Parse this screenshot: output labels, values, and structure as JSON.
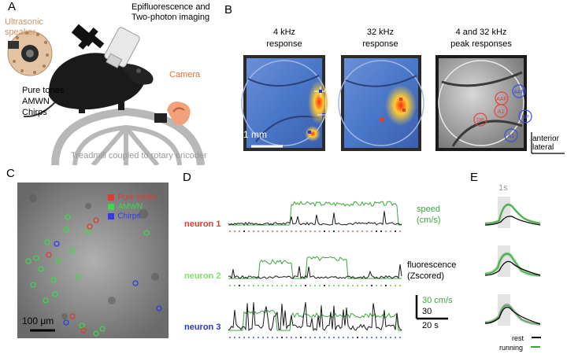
{
  "panels": {
    "A": "A",
    "B": "B",
    "C": "C",
    "D": "D",
    "E": "E"
  },
  "panel_a": {
    "speaker_line1": "Ultrasonic",
    "speaker_line2": "speaker",
    "imaging_line1": "Epifluorescence and",
    "imaging_line2": "Two-photon imaging",
    "stim_line1": "Pure tones",
    "stim_line2": "AMWN",
    "stim_line3": "Chirps",
    "camera": "Camera",
    "treadmill": "Treadmill coupled to rotary encoder",
    "colors": {
      "speaker_text": "#c9956a",
      "camera_text": "#e0703a",
      "treadmill_text": "#9a9a9a"
    }
  },
  "panel_b": {
    "img1_line1": "4 kHz",
    "img1_line2": "response",
    "img2_line1": "32 kHz",
    "img2_line2": "response",
    "img3_line1": "4 and 32 kHz",
    "img3_line2": "peak responses",
    "scale": "1 mm",
    "red_regions": [
      "AAF",
      "A1",
      "DP"
    ],
    "blue_regions": [
      "AAF",
      "UF",
      "DP",
      "A1"
    ],
    "compass_anterior": "anterior",
    "compass_lateral": "lateral",
    "colors": {
      "red": "#e8423a",
      "blue": "#3a4fe0"
    }
  },
  "panel_c": {
    "legend": [
      {
        "label": "Pure tones",
        "color": "#e33b2e"
      },
      {
        "label": "AMWN",
        "color": "#3ed84a"
      },
      {
        "label": "Chirps",
        "color": "#2f3ce8"
      }
    ],
    "scale": "100 μm"
  },
  "panel_d": {
    "neurons": [
      {
        "label": "neuron 1",
        "color": "#e53b2a"
      },
      {
        "label": "neuron 2",
        "color": "#7fe06a"
      },
      {
        "label": "neuron 3",
        "color": "#2a36d8"
      }
    ],
    "speed_line1": "speed",
    "speed_line2": "(cm/s)",
    "fluor_line1": "fluorescence",
    "fluor_line2": "(Zscored)",
    "scale_speed": "30 cm/s",
    "scale_z": "30",
    "scale_time": "20 s",
    "colors": {
      "speed": "#3aa63a",
      "fluor": "#1a1a1a"
    }
  },
  "panel_e": {
    "time_scale": "1s",
    "legend": [
      {
        "label": "rest",
        "color": "#000000"
      },
      {
        "label": "running",
        "color": "#3aa63a"
      }
    ]
  }
}
